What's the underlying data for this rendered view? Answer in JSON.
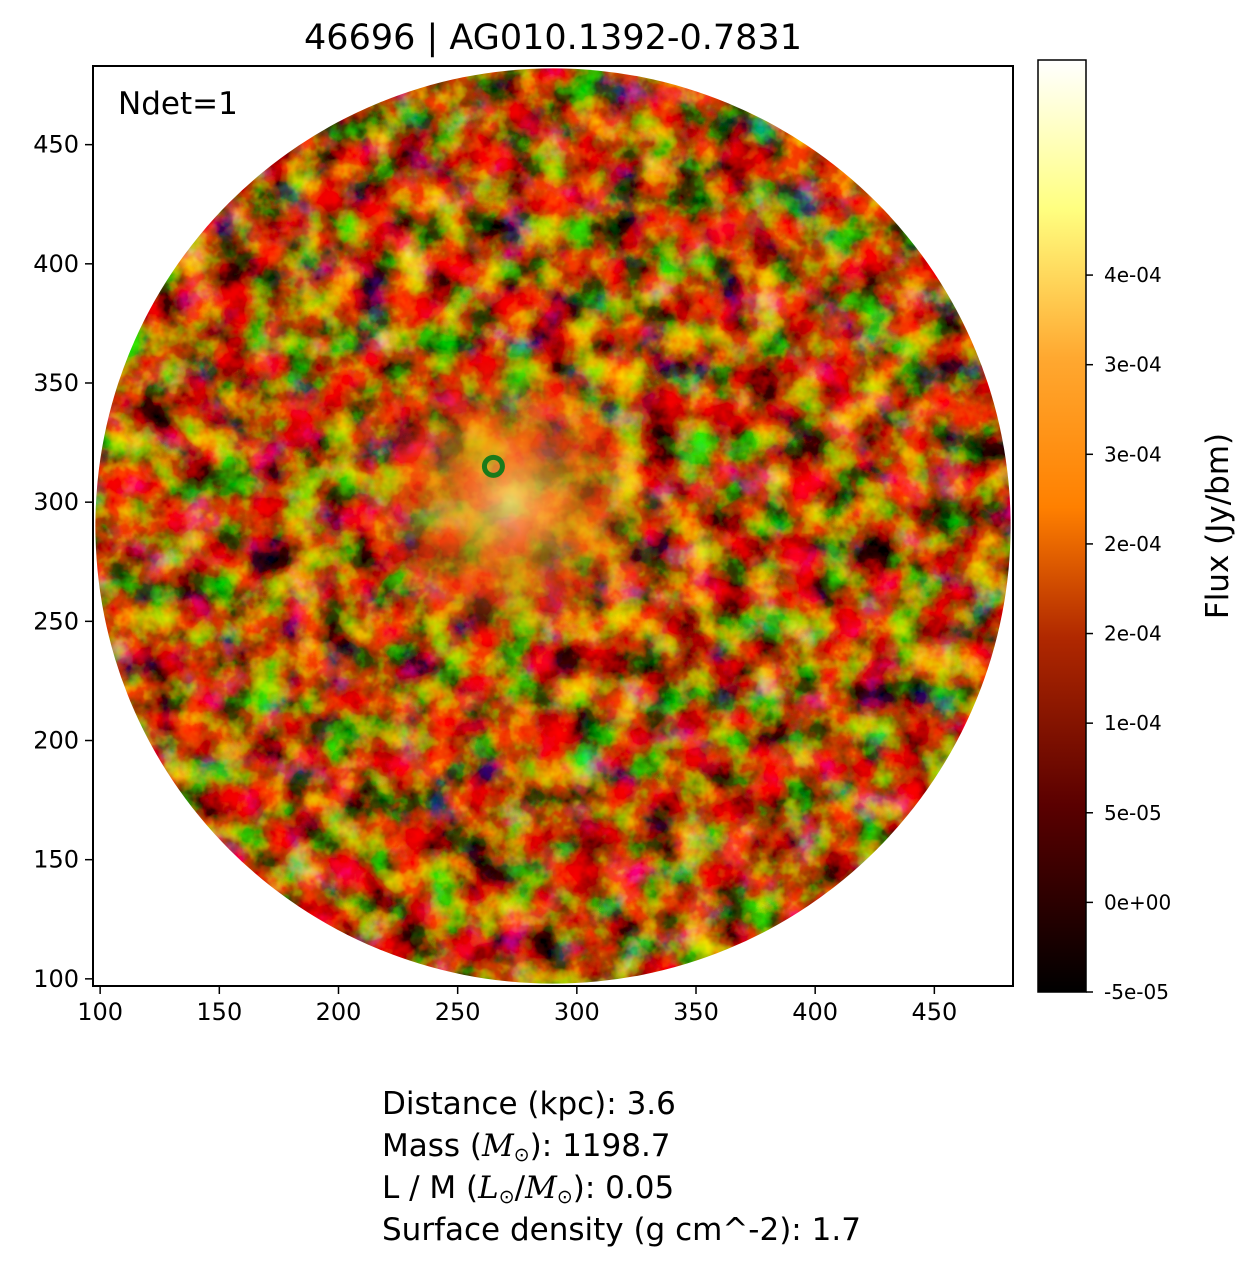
{
  "chart_data": {
    "type": "heatmap",
    "title": "46696 | AG010.1392-0.7831",
    "annotation": "Ndet=1",
    "xlabel": "",
    "ylabel": "",
    "xlim": [
      97,
      483
    ],
    "ylim": [
      97,
      483
    ],
    "xticks": [
      100,
      150,
      200,
      250,
      300,
      350,
      400,
      450
    ],
    "yticks": [
      100,
      150,
      200,
      250,
      300,
      350,
      400,
      450
    ],
    "image_region": {
      "shape": "circle",
      "center": [
        290,
        290
      ],
      "radius": 192
    },
    "bright_region_center": [
      272,
      300
    ],
    "marker": {
      "shape": "ring",
      "x": 265,
      "y": 315,
      "color": "#1a7a1a"
    },
    "colormap": "afmhot",
    "colorbar": {
      "label": "Flux (Jy/bm)",
      "min": -5e-05,
      "max": 0.00047,
      "ticks": [
        {
          "value": -5e-05,
          "label": "-5e-05"
        },
        {
          "value": 0.0,
          "label": "0e+00"
        },
        {
          "value": 5e-05,
          "label": "5e-05"
        },
        {
          "value": 0.0001,
          "label": "1e-04"
        },
        {
          "value": 0.00015,
          "label": "2e-04"
        },
        {
          "value": 0.0002,
          "label": "2e-04"
        },
        {
          "value": 0.00025,
          "label": "3e-04"
        },
        {
          "value": 0.0003,
          "label": "3e-04"
        },
        {
          "value": 0.00035,
          "label": "4e-04"
        }
      ]
    }
  },
  "info": {
    "distance": "Distance (kpc): 3.6",
    "mass_prefix": "Mass (",
    "mass_suffix": "): 1198.7",
    "lm_prefix": "L / M (",
    "lm_suffix": "): 0.05",
    "surface_density": "Surface density (g cm^-2): 1.7",
    "mass_symbol": "M",
    "lum_symbol": "L",
    "sun_symbol": "⊙"
  },
  "colors": {
    "marker": "#1a7a1a",
    "frame": "#000000"
  }
}
